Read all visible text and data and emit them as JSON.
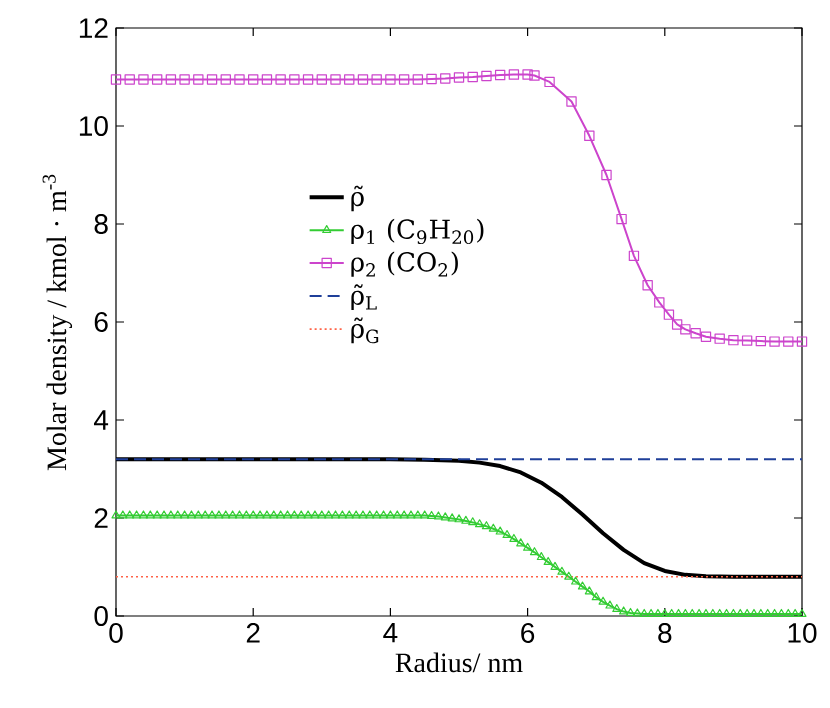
{
  "chart_data": {
    "type": "line",
    "xlabel": "Radius/ nm",
    "ylabel": "Molar density / kmol · m$^{-3}$",
    "xlim": [
      0,
      10
    ],
    "ylim": [
      0,
      12
    ],
    "xticks": [
      0,
      2,
      4,
      6,
      8,
      10
    ],
    "yticks": [
      0,
      2,
      4,
      6,
      8,
      10,
      12
    ],
    "legend": "center left",
    "grid": false,
    "series": [
      {
        "name": "ρ̃",
        "color": "#000000",
        "marker": "none",
        "line_style": "solid",
        "x": [
          0,
          1,
          2,
          3,
          4,
          4.5,
          5,
          5.3,
          5.6,
          5.9,
          6.2,
          6.5,
          6.8,
          7.1,
          7.4,
          7.7,
          8.0,
          8.3,
          8.6,
          9,
          10
        ],
        "values": [
          3.2,
          3.2,
          3.2,
          3.2,
          3.2,
          3.19,
          3.17,
          3.13,
          3.06,
          2.93,
          2.72,
          2.43,
          2.07,
          1.69,
          1.35,
          1.08,
          0.92,
          0.84,
          0.81,
          0.8,
          0.8
        ]
      },
      {
        "name": "ρ$_{1}$ (C$_{9}$H$_{20}$)",
        "color": "#33cc33",
        "marker": "triangle",
        "line_style": "solid",
        "x": [
          0,
          0.1,
          0.2,
          0.3,
          0.4,
          0.5,
          0.6,
          0.7,
          0.8,
          0.9,
          1,
          1.1,
          1.2,
          1.3,
          1.4,
          1.5,
          1.6,
          1.7,
          1.8,
          1.9,
          2,
          2.1,
          2.2,
          2.3,
          2.4,
          2.5,
          2.6,
          2.7,
          2.8,
          2.9,
          3,
          3.1,
          3.2,
          3.3,
          3.4,
          3.5,
          3.6,
          3.7,
          3.8,
          3.9,
          4,
          4.1,
          4.2,
          4.3,
          4.4,
          4.5,
          4.6,
          4.7,
          4.8,
          4.9,
          5,
          5.1,
          5.2,
          5.3,
          5.4,
          5.5,
          5.6,
          5.7,
          5.8,
          5.9,
          6,
          6.1,
          6.2,
          6.3,
          6.4,
          6.5,
          6.6,
          6.7,
          6.8,
          6.9,
          7,
          7.1,
          7.2,
          7.3,
          7.4,
          7.5,
          7.6,
          7.7,
          7.8,
          7.9,
          8,
          8.1,
          8.2,
          8.3,
          8.4,
          8.5,
          8.6,
          8.7,
          8.8,
          8.9,
          9,
          9.1,
          9.2,
          9.3,
          9.4,
          9.5,
          9.6,
          9.7,
          9.8,
          9.9,
          10
        ],
        "values": [
          2.05,
          2.05,
          2.05,
          2.05,
          2.05,
          2.05,
          2.05,
          2.05,
          2.05,
          2.05,
          2.05,
          2.05,
          2.05,
          2.05,
          2.05,
          2.05,
          2.05,
          2.05,
          2.05,
          2.05,
          2.05,
          2.05,
          2.05,
          2.05,
          2.05,
          2.05,
          2.05,
          2.05,
          2.05,
          2.05,
          2.05,
          2.05,
          2.05,
          2.05,
          2.05,
          2.05,
          2.05,
          2.05,
          2.05,
          2.05,
          2.05,
          2.05,
          2.05,
          2.05,
          2.05,
          2.05,
          2.04,
          2.03,
          2.01,
          1.99,
          1.97,
          1.94,
          1.91,
          1.87,
          1.83,
          1.78,
          1.72,
          1.65,
          1.57,
          1.48,
          1.39,
          1.3,
          1.2,
          1.1,
          1.0,
          0.9,
          0.8,
          0.7,
          0.6,
          0.5,
          0.38,
          0.29,
          0.21,
          0.14,
          0.09,
          0.06,
          0.05,
          0.04,
          0.04,
          0.04,
          0.04,
          0.04,
          0.04,
          0.04,
          0.04,
          0.04,
          0.04,
          0.04,
          0.04,
          0.04,
          0.04,
          0.04,
          0.04,
          0.04,
          0.04,
          0.04,
          0.04,
          0.04,
          0.04,
          0.04,
          0.04
        ]
      },
      {
        "name": "ρ$_{2}$ (CO$_{2}$)",
        "color": "#cc44cc",
        "marker": "square",
        "line_style": "solid",
        "x": [
          0,
          0.2,
          0.4,
          0.6,
          0.8,
          1,
          1.2,
          1.4,
          1.6,
          1.8,
          2,
          2.2,
          2.4,
          2.6,
          2.8,
          3,
          3.2,
          3.4,
          3.6,
          3.8,
          4,
          4.2,
          4.4,
          4.6,
          4.8,
          5,
          5.2,
          5.4,
          5.6,
          5.8,
          6,
          6.1,
          6.32,
          6.64,
          6.9,
          7.15,
          7.37,
          7.55,
          7.75,
          7.92,
          8.06,
          8.18,
          8.3,
          8.45,
          8.6,
          8.8,
          9,
          9.2,
          9.4,
          9.6,
          9.8,
          10
        ],
        "values": [
          10.95,
          10.95,
          10.95,
          10.95,
          10.95,
          10.95,
          10.95,
          10.95,
          10.95,
          10.95,
          10.95,
          10.95,
          10.95,
          10.95,
          10.95,
          10.95,
          10.95,
          10.95,
          10.95,
          10.95,
          10.95,
          10.95,
          10.95,
          10.96,
          10.97,
          10.99,
          11.0,
          11.02,
          11.04,
          11.05,
          11.05,
          11.03,
          10.9,
          10.5,
          9.8,
          9.0,
          8.1,
          7.35,
          6.75,
          6.4,
          6.15,
          5.95,
          5.85,
          5.77,
          5.7,
          5.66,
          5.63,
          5.62,
          5.61,
          5.6,
          5.6,
          5.6
        ]
      },
      {
        "name": "ρ̃$_{L}$",
        "color": "#1f3f99",
        "marker": "none",
        "line_style": "dashed",
        "x": [
          0,
          10
        ],
        "values": [
          3.2,
          3.2
        ]
      },
      {
        "name": "ρ̃$_{G}$",
        "color": "#ff6347",
        "marker": "none",
        "line_style": "dotted",
        "x": [
          0,
          10
        ],
        "values": [
          0.8,
          0.8
        ]
      }
    ]
  }
}
